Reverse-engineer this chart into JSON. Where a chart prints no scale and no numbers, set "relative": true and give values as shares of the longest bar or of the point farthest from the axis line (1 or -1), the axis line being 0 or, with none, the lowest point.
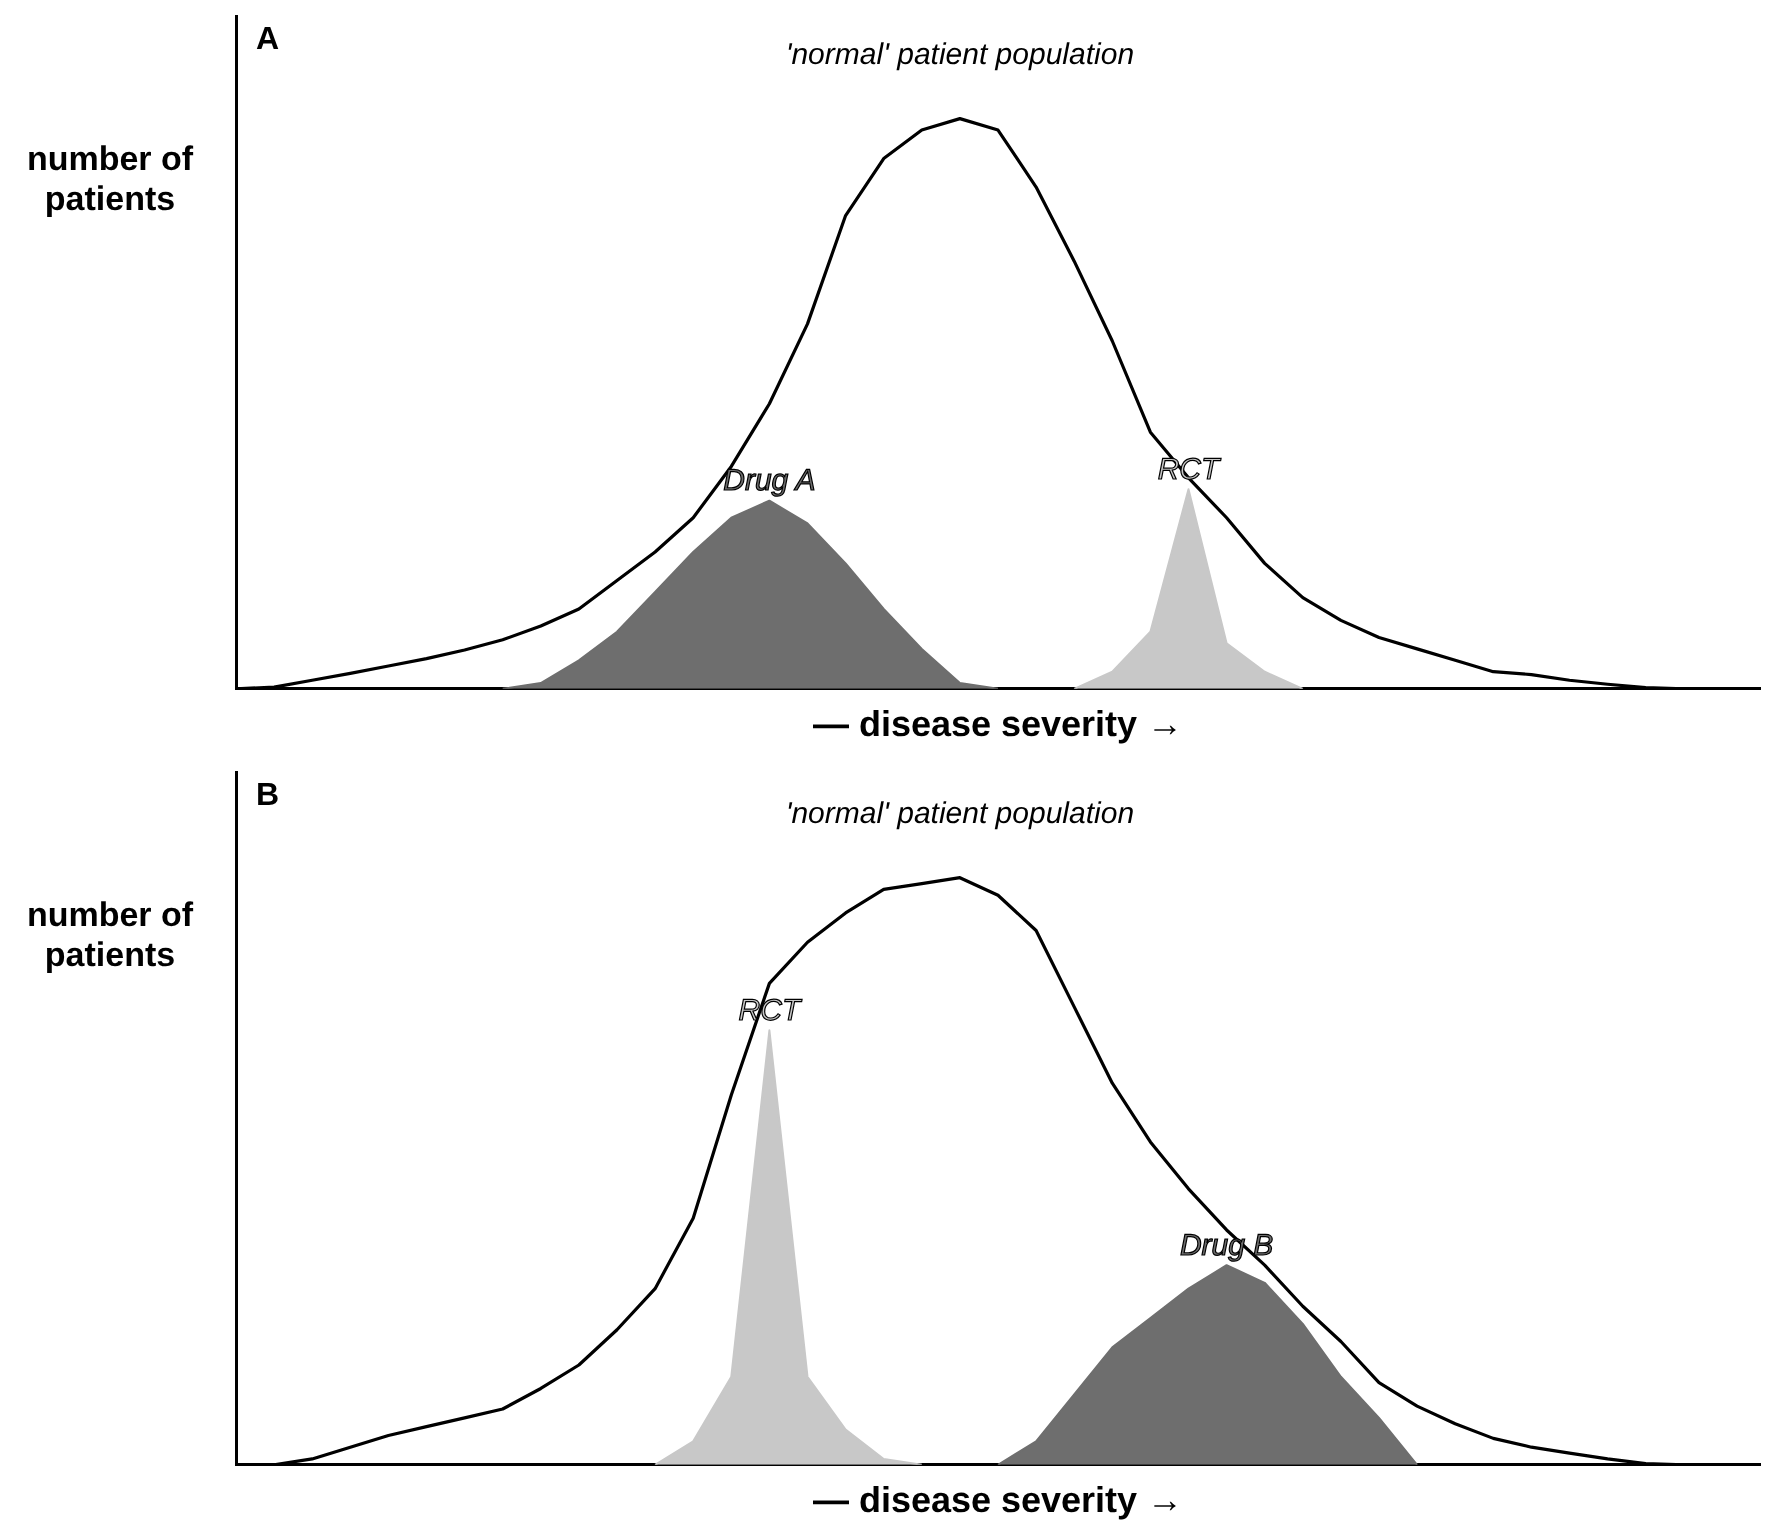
{
  "chart_data": [
    {
      "type": "line",
      "relative": true,
      "xlabel": "— disease severity →",
      "ylabel": "number of patients",
      "annotations": [
        "A"
      ],
      "grid": false,
      "legend": false,
      "categories": [
        null,
        null,
        null,
        null,
        null,
        null,
        null,
        null,
        null,
        null,
        null,
        null,
        null,
        null,
        null,
        null,
        null,
        null,
        null,
        null,
        null,
        null,
        null,
        null,
        null,
        null,
        null,
        null,
        null,
        null,
        null,
        null,
        null,
        null,
        null,
        null,
        null,
        null,
        null,
        null,
        null
      ],
      "series": [
        {
          "name": "'normal' patient population",
          "type": "line",
          "color": "#000000",
          "values": [
            0,
            0.003,
            0.015,
            0.027,
            0.04,
            0.053,
            0.068,
            0.086,
            0.11,
            0.14,
            0.19,
            0.24,
            0.3,
            0.39,
            0.5,
            0.64,
            0.83,
            0.93,
            0.98,
            1,
            0.98,
            0.88,
            0.75,
            0.61,
            0.45,
            0.37,
            0.3,
            0.22,
            0.16,
            0.12,
            0.09,
            0.07,
            0.05,
            0.03,
            0.025,
            0.015,
            0.008,
            0.002,
            0,
            null,
            null
          ]
        },
        {
          "name": "Drug A",
          "type": "area",
          "color": "#6e6e6e",
          "values": [
            null,
            null,
            null,
            null,
            null,
            null,
            null,
            0,
            0.01,
            0.05,
            0.1,
            0.17,
            0.24,
            0.3,
            0.33,
            0.29,
            0.22,
            0.14,
            0.07,
            0.01,
            0,
            null,
            null,
            null,
            null,
            null,
            null,
            null,
            null,
            null,
            null,
            null,
            null,
            null,
            null,
            null,
            null,
            null,
            null,
            null,
            null
          ]
        },
        {
          "name": "RCT",
          "type": "area",
          "color": "#c8c8c8",
          "values": [
            null,
            null,
            null,
            null,
            null,
            null,
            null,
            null,
            null,
            null,
            null,
            null,
            null,
            null,
            null,
            null,
            null,
            null,
            null,
            null,
            null,
            null,
            0,
            0.03,
            0.1,
            0.35,
            0.08,
            0.03,
            0,
            null,
            null,
            null,
            null,
            null,
            null,
            null,
            null,
            null,
            null,
            null,
            null
          ]
        }
      ]
    },
    {
      "type": "line",
      "relative": true,
      "xlabel": "— disease severity →",
      "ylabel": "number of patients",
      "annotations": [
        "B"
      ],
      "grid": false,
      "legend": false,
      "categories": [
        null,
        null,
        null,
        null,
        null,
        null,
        null,
        null,
        null,
        null,
        null,
        null,
        null,
        null,
        null,
        null,
        null,
        null,
        null,
        null,
        null,
        null,
        null,
        null,
        null,
        null,
        null,
        null,
        null,
        null,
        null,
        null,
        null,
        null,
        null,
        null,
        null,
        null,
        null,
        null,
        null
      ],
      "series": [
        {
          "name": "'normal' patient population",
          "type": "line",
          "color": "#000000",
          "values": [
            null,
            0,
            0.01,
            0.03,
            0.05,
            0.065,
            0.08,
            0.095,
            0.13,
            0.17,
            0.23,
            0.3,
            0.42,
            0.63,
            0.82,
            0.89,
            0.94,
            0.98,
            0.99,
            1,
            0.97,
            0.91,
            0.78,
            0.65,
            0.55,
            0.47,
            0.4,
            0.34,
            0.27,
            0.21,
            0.14,
            0.1,
            0.07,
            0.045,
            0.03,
            0.02,
            0.01,
            0.002,
            0,
            null,
            null
          ]
        },
        {
          "name": "RCT",
          "type": "area",
          "color": "#c8c8c8",
          "values": [
            null,
            null,
            null,
            null,
            null,
            null,
            null,
            null,
            null,
            null,
            null,
            0,
            0.04,
            0.15,
            0.74,
            0.15,
            0.06,
            0.01,
            0,
            null,
            null,
            null,
            null,
            null,
            null,
            null,
            null,
            null,
            null,
            null,
            null,
            null,
            null,
            null,
            null,
            null,
            null,
            null,
            null,
            null,
            null
          ]
        },
        {
          "name": "Drug B",
          "type": "area",
          "color": "#6e6e6e",
          "values": [
            null,
            null,
            null,
            null,
            null,
            null,
            null,
            null,
            null,
            null,
            null,
            null,
            null,
            null,
            null,
            null,
            null,
            null,
            null,
            null,
            0,
            0.04,
            0.12,
            0.2,
            0.25,
            0.3,
            0.34,
            0.31,
            0.24,
            0.15,
            0.08,
            0,
            null,
            null,
            null,
            null,
            null,
            null,
            null,
            null,
            null
          ]
        }
      ]
    }
  ]
}
